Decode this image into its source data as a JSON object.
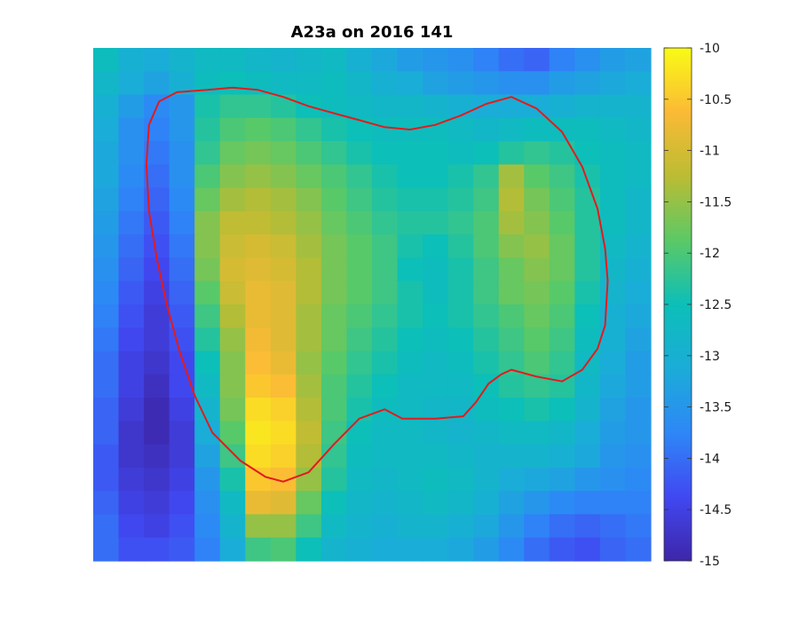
{
  "chart_data": {
    "type": "heatmap",
    "title": "A23a on 2016 141",
    "xlabel": "",
    "ylabel": "",
    "colormap": "parula",
    "clim": [
      -15,
      -10
    ],
    "colorbar_ticks": [
      "-10",
      "-10.5",
      "-11",
      "-11.5",
      "-12",
      "-12.5",
      "-13",
      "-13.5",
      "-14",
      "-14.5",
      "-15"
    ],
    "colorbar_values": [
      -10,
      -10.5,
      -11,
      -11.5,
      -12,
      -12.5,
      -13,
      -13.5,
      -14,
      -14.5,
      -15
    ],
    "grid_cols": 22,
    "grid_rows": 22,
    "values": [
      [
        -12.6,
        -13.0,
        -13.1,
        -12.9,
        -12.7,
        -12.7,
        -12.8,
        -12.9,
        -12.8,
        -12.7,
        -13.0,
        -13.2,
        -13.4,
        -13.5,
        -13.6,
        -13.8,
        -14.0,
        -14.1,
        -13.8,
        -13.6,
        -13.4,
        -13.3
      ],
      [
        -12.8,
        -13.1,
        -13.3,
        -13.0,
        -12.6,
        -12.5,
        -12.6,
        -12.7,
        -12.7,
        -12.6,
        -12.8,
        -13.0,
        -13.1,
        -13.3,
        -13.4,
        -13.5,
        -13.6,
        -13.6,
        -13.4,
        -13.3,
        -13.2,
        -13.1
      ],
      [
        -13.0,
        -13.4,
        -13.7,
        -13.5,
        -12.4,
        -12.2,
        -12.2,
        -12.3,
        -12.5,
        -12.6,
        -12.7,
        -12.8,
        -12.8,
        -12.9,
        -13.0,
        -13.1,
        -13.1,
        -13.1,
        -13.0,
        -12.9,
        -12.9,
        -12.9
      ],
      [
        -13.1,
        -13.6,
        -13.8,
        -13.5,
        -12.3,
        -12.0,
        -11.9,
        -12.0,
        -12.2,
        -12.4,
        -12.5,
        -12.6,
        -12.6,
        -12.6,
        -12.7,
        -12.8,
        -12.7,
        -12.6,
        -12.6,
        -12.6,
        -12.7,
        -12.8
      ],
      [
        -13.2,
        -13.6,
        -13.9,
        -13.6,
        -12.2,
        -11.8,
        -11.7,
        -11.8,
        -12.0,
        -12.2,
        -12.4,
        -12.5,
        -12.5,
        -12.5,
        -12.6,
        -12.5,
        -12.3,
        -12.2,
        -12.3,
        -12.5,
        -12.6,
        -12.7
      ],
      [
        -13.2,
        -13.7,
        -14.0,
        -13.6,
        -12.0,
        -11.6,
        -11.5,
        -11.6,
        -11.8,
        -12.0,
        -12.2,
        -12.4,
        -12.5,
        -12.5,
        -12.4,
        -12.2,
        -11.4,
        -11.9,
        -12.1,
        -12.4,
        -12.6,
        -12.7
      ],
      [
        -13.3,
        -13.8,
        -14.1,
        -13.7,
        -11.8,
        -11.4,
        -11.3,
        -11.4,
        -11.6,
        -11.9,
        -12.1,
        -12.3,
        -12.4,
        -12.4,
        -12.3,
        -12.1,
        -11.3,
        -11.7,
        -12.0,
        -12.3,
        -12.6,
        -12.8
      ],
      [
        -13.4,
        -13.9,
        -14.2,
        -13.8,
        -11.6,
        -11.2,
        -11.2,
        -11.3,
        -11.5,
        -11.8,
        -12.0,
        -12.2,
        -12.3,
        -12.3,
        -12.2,
        -12.0,
        -11.4,
        -11.6,
        -11.9,
        -12.3,
        -12.6,
        -12.8
      ],
      [
        -13.5,
        -14.0,
        -14.3,
        -13.9,
        -11.6,
        -11.1,
        -11.0,
        -11.1,
        -11.4,
        -11.7,
        -11.9,
        -12.1,
        -12.4,
        -12.5,
        -12.3,
        -12.0,
        -11.6,
        -11.5,
        -11.8,
        -12.3,
        -12.7,
        -12.9
      ],
      [
        -13.6,
        -14.1,
        -14.4,
        -14.0,
        -11.7,
        -11.0,
        -10.9,
        -11.0,
        -11.3,
        -11.7,
        -11.9,
        -12.1,
        -12.5,
        -12.6,
        -12.4,
        -12.1,
        -11.8,
        -11.6,
        -11.8,
        -12.3,
        -12.8,
        -13.0
      ],
      [
        -13.7,
        -14.2,
        -14.5,
        -14.1,
        -11.9,
        -11.1,
        -10.8,
        -10.9,
        -11.3,
        -11.7,
        -11.9,
        -12.1,
        -12.4,
        -12.6,
        -12.4,
        -12.1,
        -11.8,
        -11.7,
        -11.9,
        -12.4,
        -12.9,
        -13.1
      ],
      [
        -13.8,
        -14.3,
        -14.6,
        -14.2,
        -12.1,
        -11.3,
        -10.8,
        -10.9,
        -11.4,
        -11.8,
        -12.0,
        -12.2,
        -12.4,
        -12.5,
        -12.4,
        -12.2,
        -12.0,
        -11.8,
        -12.0,
        -12.5,
        -13.0,
        -13.2
      ],
      [
        -13.9,
        -14.4,
        -14.6,
        -14.3,
        -12.3,
        -11.5,
        -10.7,
        -10.9,
        -11.4,
        -11.8,
        -12.1,
        -12.3,
        -12.5,
        -12.6,
        -12.5,
        -12.3,
        -12.1,
        -11.9,
        -12.1,
        -12.6,
        -13.0,
        -13.3
      ],
      [
        -14.0,
        -14.5,
        -14.7,
        -14.4,
        -12.5,
        -11.6,
        -10.6,
        -10.8,
        -11.5,
        -11.9,
        -12.2,
        -12.4,
        -12.6,
        -12.7,
        -12.6,
        -12.4,
        -12.2,
        -12.0,
        -12.2,
        -12.7,
        -13.1,
        -13.4
      ],
      [
        -14.0,
        -14.5,
        -14.8,
        -14.4,
        -12.7,
        -11.6,
        -10.5,
        -10.6,
        -11.4,
        -12.0,
        -12.3,
        -12.5,
        -12.7,
        -12.7,
        -12.7,
        -12.5,
        -12.3,
        -12.2,
        -12.3,
        -12.8,
        -13.2,
        -13.4
      ],
      [
        -14.1,
        -14.6,
        -14.9,
        -14.5,
        -12.9,
        -11.7,
        -10.3,
        -10.4,
        -11.3,
        -12.0,
        -12.4,
        -12.6,
        -12.7,
        -12.8,
        -12.8,
        -12.6,
        -12.5,
        -12.4,
        -12.5,
        -12.9,
        -13.3,
        -13.5
      ],
      [
        -14.1,
        -14.7,
        -14.9,
        -14.6,
        -13.1,
        -11.9,
        -10.2,
        -10.3,
        -11.2,
        -12.1,
        -12.5,
        -12.7,
        -12.7,
        -12.8,
        -12.9,
        -12.8,
        -12.7,
        -12.7,
        -12.8,
        -13.1,
        -13.4,
        -13.5
      ],
      [
        -14.2,
        -14.7,
        -14.8,
        -14.6,
        -13.3,
        -12.1,
        -10.3,
        -10.4,
        -11.3,
        -12.2,
        -12.6,
        -12.7,
        -12.7,
        -12.7,
        -12.8,
        -12.9,
        -12.9,
        -12.9,
        -13.0,
        -13.2,
        -13.5,
        -13.6
      ],
      [
        -14.2,
        -14.6,
        -14.7,
        -14.5,
        -13.5,
        -12.4,
        -10.5,
        -10.6,
        -11.5,
        -12.3,
        -12.7,
        -12.8,
        -12.7,
        -12.6,
        -12.7,
        -12.9,
        -13.1,
        -13.2,
        -13.3,
        -13.5,
        -13.6,
        -13.7
      ],
      [
        -14.1,
        -14.5,
        -14.6,
        -14.4,
        -13.6,
        -12.7,
        -10.8,
        -10.9,
        -11.8,
        -12.5,
        -12.8,
        -12.9,
        -12.8,
        -12.7,
        -12.8,
        -13.0,
        -13.3,
        -13.5,
        -13.7,
        -13.8,
        -13.8,
        -13.8
      ],
      [
        -14.0,
        -14.4,
        -14.5,
        -14.3,
        -13.7,
        -12.9,
        -11.5,
        -11.5,
        -12.1,
        -12.7,
        -12.9,
        -13.0,
        -12.9,
        -12.9,
        -13.0,
        -13.2,
        -13.5,
        -13.8,
        -14.0,
        -14.1,
        -14.0,
        -13.9
      ],
      [
        -14.0,
        -14.3,
        -14.3,
        -14.2,
        -13.8,
        -13.1,
        -12.1,
        -12.0,
        -12.5,
        -12.9,
        -13.0,
        -13.1,
        -13.1,
        -13.1,
        -13.2,
        -13.4,
        -13.7,
        -14.0,
        -14.2,
        -14.3,
        -14.1,
        -14.0
      ]
    ],
    "contour": {
      "color": "#e41a1c",
      "points_data_units": [
        [
          4.5,
          1.8
        ],
        [
          5.5,
          1.7
        ],
        [
          6.5,
          1.8
        ],
        [
          7.5,
          2.1
        ],
        [
          8.5,
          2.5
        ],
        [
          9.5,
          2.8
        ],
        [
          10.5,
          3.1
        ],
        [
          11.5,
          3.4
        ],
        [
          12.5,
          3.5
        ],
        [
          13.5,
          3.3
        ],
        [
          14.5,
          2.9
        ],
        [
          15.5,
          2.4
        ],
        [
          16.5,
          2.1
        ],
        [
          17.5,
          2.6
        ],
        [
          18.5,
          3.6
        ],
        [
          19.3,
          5.1
        ],
        [
          19.9,
          6.9
        ],
        [
          20.2,
          8.6
        ],
        [
          20.3,
          10
        ],
        [
          20.2,
          11.9
        ],
        [
          19.9,
          12.9
        ],
        [
          19.3,
          13.8
        ],
        [
          18.5,
          14.3
        ],
        [
          17.5,
          14.1
        ],
        [
          16.5,
          13.8
        ],
        [
          16.1,
          14.0
        ],
        [
          15.6,
          14.4
        ],
        [
          15.1,
          15.2
        ],
        [
          14.6,
          15.8
        ],
        [
          13.5,
          15.9
        ],
        [
          12.2,
          15.9
        ],
        [
          11.5,
          15.5
        ],
        [
          10.5,
          15.9
        ],
        [
          9.5,
          17.0
        ],
        [
          8.5,
          18.2
        ],
        [
          7.5,
          18.6
        ],
        [
          6.8,
          18.4
        ],
        [
          5.8,
          17.7
        ],
        [
          4.7,
          16.5
        ],
        [
          4.0,
          14.9
        ],
        [
          3.4,
          13.0
        ],
        [
          2.9,
          11.0
        ],
        [
          2.5,
          9.0
        ],
        [
          2.2,
          7.0
        ],
        [
          2.1,
          5.0
        ],
        [
          2.2,
          3.3
        ],
        [
          2.6,
          2.3
        ],
        [
          3.3,
          1.9
        ]
      ]
    }
  }
}
